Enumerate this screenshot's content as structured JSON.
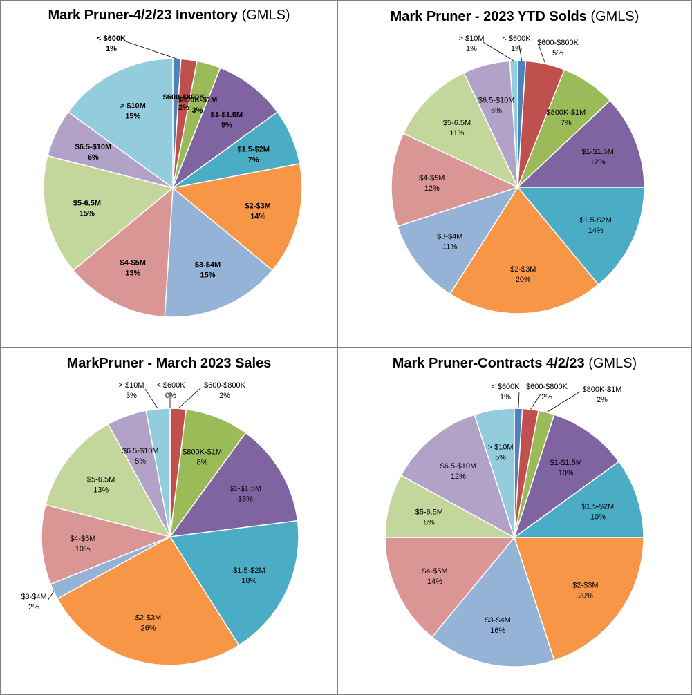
{
  "chart_data": [
    {
      "type": "pie",
      "title": "Mark Pruner-4/2/23 Inventory",
      "subtitle": "(GMLS)",
      "unit": "%",
      "categories": [
        "< $600K",
        "$600-$800K",
        "$800K-$1M",
        "$1-$1.5M",
        "$1.5-$2M",
        "$2-$3M",
        "$3-$4M",
        "$4-$5M",
        "$5-6.5M",
        "$6.5-$10M",
        "> $10M"
      ],
      "values": [
        1,
        2,
        3,
        9,
        7,
        14,
        15,
        13,
        15,
        6,
        15
      ],
      "value_labels": [
        "1%",
        "2%",
        "3%",
        "9%",
        "7%",
        "14%",
        "15%",
        "13%",
        "15%",
        "6%",
        "15%"
      ]
    },
    {
      "type": "pie",
      "title": "Mark Pruner - 2023 YTD Solds",
      "subtitle": "(GMLS)",
      "unit": "%",
      "categories": [
        "< $600K",
        "$600-$800K",
        "$800K-$1M",
        "$1-$1.5M",
        "$1.5-$2M",
        "$2-$3M",
        "$3-$4M",
        "$4-$5M",
        "$5-6.5M",
        "$6.5-$10M",
        "> $10M"
      ],
      "values": [
        1,
        5,
        7,
        12,
        14,
        20,
        11,
        12,
        11,
        6,
        1
      ],
      "value_labels": [
        "1%",
        "5%",
        "7%",
        "12%",
        "14%",
        "20%",
        "11%",
        "12%",
        "11%",
        "6%",
        "1%"
      ]
    },
    {
      "type": "pie",
      "title": "MarkPruner - March 2023 Sales",
      "subtitle": "",
      "unit": "%",
      "categories": [
        "< $600K",
        "$600-$800K",
        "$800K-$1M",
        "$1-$1.5M",
        "$1.5-$2M",
        "$2-$3M",
        "$3-$4M",
        "$4-$5M",
        "$5-6.5M",
        "$6.5-$10M",
        "> $10M"
      ],
      "values": [
        0,
        2,
        8,
        13,
        18,
        26,
        2,
        10,
        13,
        5,
        3
      ],
      "value_labels": [
        "0%",
        "2%",
        "8%",
        "13%",
        "18%",
        "26%",
        "2%",
        "10%",
        "13%",
        "5%",
        "3%"
      ]
    },
    {
      "type": "pie",
      "title": "Mark Pruner-Contracts 4/2/23",
      "subtitle": "(GMLS)",
      "unit": "%",
      "categories": [
        "< $600K",
        "$600-$800K",
        "$800K-$1M",
        "$1-$1.5M",
        "$1.5-$2M",
        "$2-$3M",
        "$3-$4M",
        "$4-$5M",
        "$5-6.5M",
        "$6.5-$10M",
        "> $10M"
      ],
      "values": [
        1,
        2,
        2,
        10,
        10,
        20,
        16,
        14,
        8,
        12,
        5
      ],
      "value_labels": [
        "1%",
        "2%",
        "2%",
        "10%",
        "10%",
        "20%",
        "16%",
        "14%",
        "8%",
        "12%",
        "5%"
      ]
    }
  ],
  "colors": [
    "#4f81bd",
    "#c0504d",
    "#9bbb59",
    "#8064a2",
    "#4bacc6",
    "#f79646",
    "#95b3d7",
    "#d99694",
    "#c3d69b",
    "#b3a2c7",
    "#93cddd"
  ]
}
